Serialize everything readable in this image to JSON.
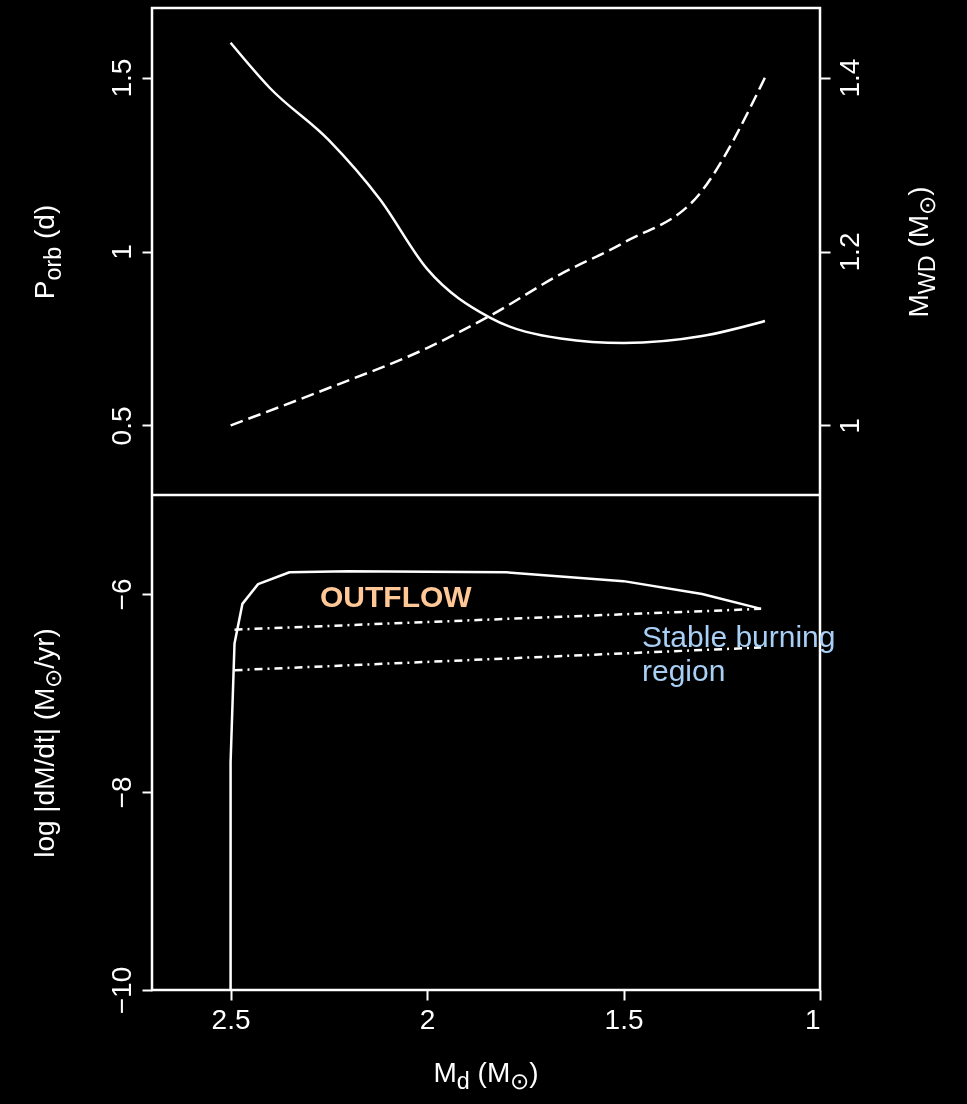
{
  "chart_data": [
    {
      "type": "line",
      "ylabel": "P$_{orb}$ (d)",
      "y2label": "M$_{WD}$ (M$_{⊙}$)",
      "xlim": [
        2.7,
        1
      ],
      "xticks": [
        2.5,
        2,
        1.5,
        1
      ],
      "ylim": [
        0.3,
        1.7
      ],
      "yticks": [
        0.5,
        1,
        1.5
      ],
      "y2lim": [
        0.92,
        1.48
      ],
      "y2ticks": [
        1,
        1.2,
        1.4
      ],
      "tick_labels": "y",
      "grid": false,
      "series": [
        {
          "color": "#ffffff",
          "line_style": "solid",
          "x": [
            2.5,
            2.4,
            2.25,
            2.12,
            2.0,
            1.84,
            1.66,
            1.5,
            1.3,
            1.14
          ],
          "values": [
            1.6,
            1.47,
            1.32,
            1.15,
            0.95,
            0.81,
            0.75,
            0.737,
            0.757,
            0.8
          ]
        },
        {
          "color": "#ffffff",
          "line_style": "dashed",
          "axis": "y2",
          "x": [
            2.5,
            2.25,
            2.0,
            1.84,
            1.66,
            1.5,
            1.3,
            1.14
          ],
          "values": [
            1.0,
            1.043,
            1.089,
            1.126,
            1.174,
            1.21,
            1.27,
            1.4
          ]
        }
      ]
    },
    {
      "type": "line",
      "ylabel": "log |dM/dt| (M$_{⊙}$/yr)",
      "xlabel": "M$_{d}$ (M$_{⊙}$)",
      "xlim": [
        2.7,
        1
      ],
      "xticks": [
        2.5,
        2,
        1.5,
        1
      ],
      "ylim": [
        -10,
        -5
      ],
      "yticks": [
        -10,
        -8,
        -6
      ],
      "grid": false,
      "annotations": [
        "OUTFLOW",
        "Stable burning region"
      ],
      "series": [
        {
          "color": "#ffffff",
          "line_style": "solid",
          "x": [
            2.5,
            2.5,
            2.49,
            2.47,
            2.43,
            2.35,
            2.2,
            1.8,
            1.5,
            1.3,
            1.15
          ],
          "values": [
            -10,
            -7.7,
            -6.5,
            -6.1,
            -5.9,
            -5.78,
            -5.77,
            -5.78,
            -5.87,
            -6.0,
            -6.15
          ]
        },
        {
          "color": "#ffffff",
          "line_style": "dotted",
          "x": [
            2.49,
            1.15
          ],
          "values": [
            -6.36,
            -6.15
          ]
        },
        {
          "color": "#ffffff",
          "line_style": "dotted",
          "x": [
            2.49,
            1.15
          ],
          "values": [
            -6.77,
            -6.54
          ]
        }
      ]
    }
  ]
}
